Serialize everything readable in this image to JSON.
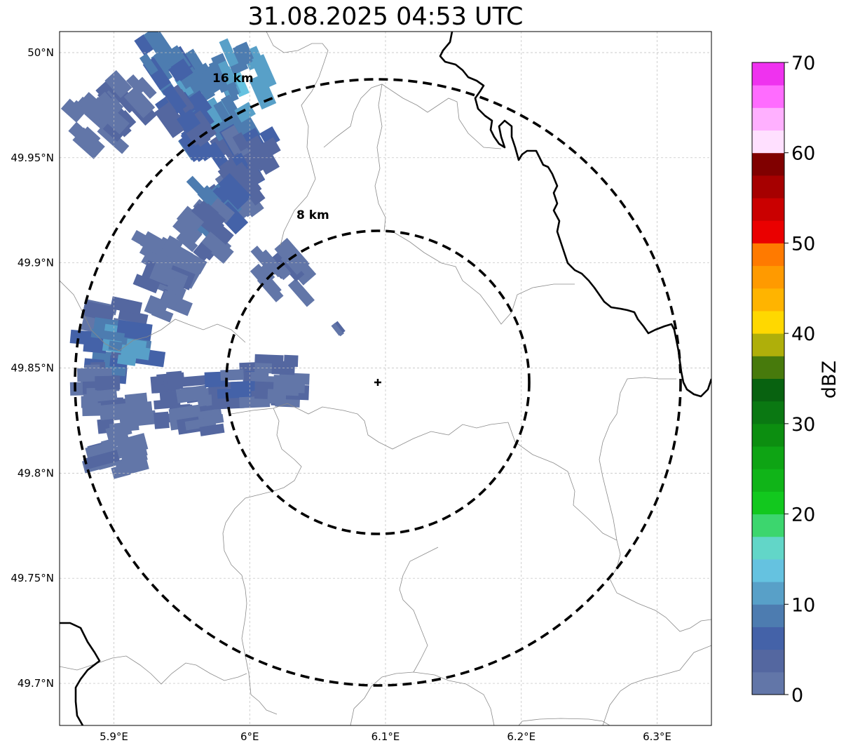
{
  "title": "31.08.2025 04:53 UTC",
  "map": {
    "lon_range": [
      5.86,
      6.34
    ],
    "lat_range": [
      49.68,
      50.01
    ],
    "x_ticks": [
      {
        "value": 5.9,
        "label": "5.9°E"
      },
      {
        "value": 6.0,
        "label": "6°E"
      },
      {
        "value": 6.1,
        "label": "6.1°E"
      },
      {
        "value": 6.2,
        "label": "6.2°E"
      },
      {
        "value": 6.3,
        "label": "6.3°E"
      }
    ],
    "y_ticks": [
      {
        "value": 50.0,
        "label": "50°N"
      },
      {
        "value": 49.95,
        "label": "49.95°N"
      },
      {
        "value": 49.9,
        "label": "49.9°N"
      },
      {
        "value": 49.85,
        "label": "49.85°N"
      },
      {
        "value": 49.8,
        "label": "49.8°N"
      },
      {
        "value": 49.75,
        "label": "49.75°N"
      },
      {
        "value": 49.7,
        "label": "49.7°N"
      }
    ],
    "radar_site": {
      "lon": 6.0955,
      "lat": 49.843
    },
    "rings": [
      {
        "radius_km": 8,
        "label": "8 km"
      },
      {
        "radius_km": 16,
        "label": "16 km"
      }
    ]
  },
  "colorbar": {
    "label": "dBZ",
    "min": 0,
    "max": 70,
    "ticks": [
      {
        "value": 0,
        "label": "0"
      },
      {
        "value": 10,
        "label": "10"
      },
      {
        "value": 20,
        "label": "20"
      },
      {
        "value": 30,
        "label": "30"
      },
      {
        "value": 40,
        "label": "40"
      },
      {
        "value": 50,
        "label": "50"
      },
      {
        "value": 60,
        "label": "60"
      },
      {
        "value": 70,
        "label": "70"
      }
    ],
    "colors": [
      "#6276a8",
      "#5467a0",
      "#4462a8",
      "#4d7cb0",
      "#58a0c8",
      "#65c2e0",
      "#62d6c8",
      "#3cd66e",
      "#12c81e",
      "#10b418",
      "#0ea414",
      "#0c8e10",
      "#0a7812",
      "#086210",
      "#477a0c",
      "#afaf0a",
      "#ffd800",
      "#ffb400",
      "#ff9a00",
      "#ff7a00",
      "#ea0000",
      "#ca0000",
      "#a60000",
      "#800000",
      "#ffe0ff",
      "#ffb0ff",
      "#ff6cff",
      "#ef32ef"
    ]
  },
  "echoes": [
    {
      "lon": 5.96,
      "lat": 49.985,
      "dbz": 9
    },
    {
      "lon": 5.995,
      "lat": 49.99,
      "dbz": 11
    },
    {
      "lon": 5.935,
      "lat": 49.995,
      "dbz": 7
    },
    {
      "lon": 5.97,
      "lat": 49.96,
      "dbz": 6
    },
    {
      "lon": 5.985,
      "lat": 49.965,
      "dbz": 10
    },
    {
      "lon": 5.91,
      "lat": 49.975,
      "dbz": 3
    },
    {
      "lon": 5.885,
      "lat": 49.965,
      "dbz": 1
    },
    {
      "lon": 5.955,
      "lat": 49.97,
      "dbz": 5
    },
    {
      "lon": 6.0,
      "lat": 49.95,
      "dbz": 4
    },
    {
      "lon": 5.99,
      "lat": 49.935,
      "dbz": 3
    },
    {
      "lon": 5.975,
      "lat": 49.925,
      "dbz": 8
    },
    {
      "lon": 5.965,
      "lat": 49.915,
      "dbz": 2
    },
    {
      "lon": 5.94,
      "lat": 49.9,
      "dbz": 1
    },
    {
      "lon": 5.935,
      "lat": 49.885,
      "dbz": 2
    },
    {
      "lon": 5.9,
      "lat": 49.87,
      "dbz": 3
    },
    {
      "lon": 5.895,
      "lat": 49.855,
      "dbz": 6
    },
    {
      "lon": 5.91,
      "lat": 49.86,
      "dbz": 9
    },
    {
      "lon": 5.89,
      "lat": 49.84,
      "dbz": 2
    },
    {
      "lon": 5.905,
      "lat": 49.83,
      "dbz": 1
    },
    {
      "lon": 5.95,
      "lat": 49.835,
      "dbz": 3
    },
    {
      "lon": 5.965,
      "lat": 49.83,
      "dbz": 2
    },
    {
      "lon": 5.99,
      "lat": 49.84,
      "dbz": 4
    },
    {
      "lon": 6.02,
      "lat": 49.845,
      "dbz": 3
    },
    {
      "lon": 6.025,
      "lat": 49.895,
      "dbz": 2
    },
    {
      "lon": 5.905,
      "lat": 49.81,
      "dbz": 1
    },
    {
      "lon": 6.065,
      "lat": 49.868,
      "dbz": 2
    }
  ]
}
